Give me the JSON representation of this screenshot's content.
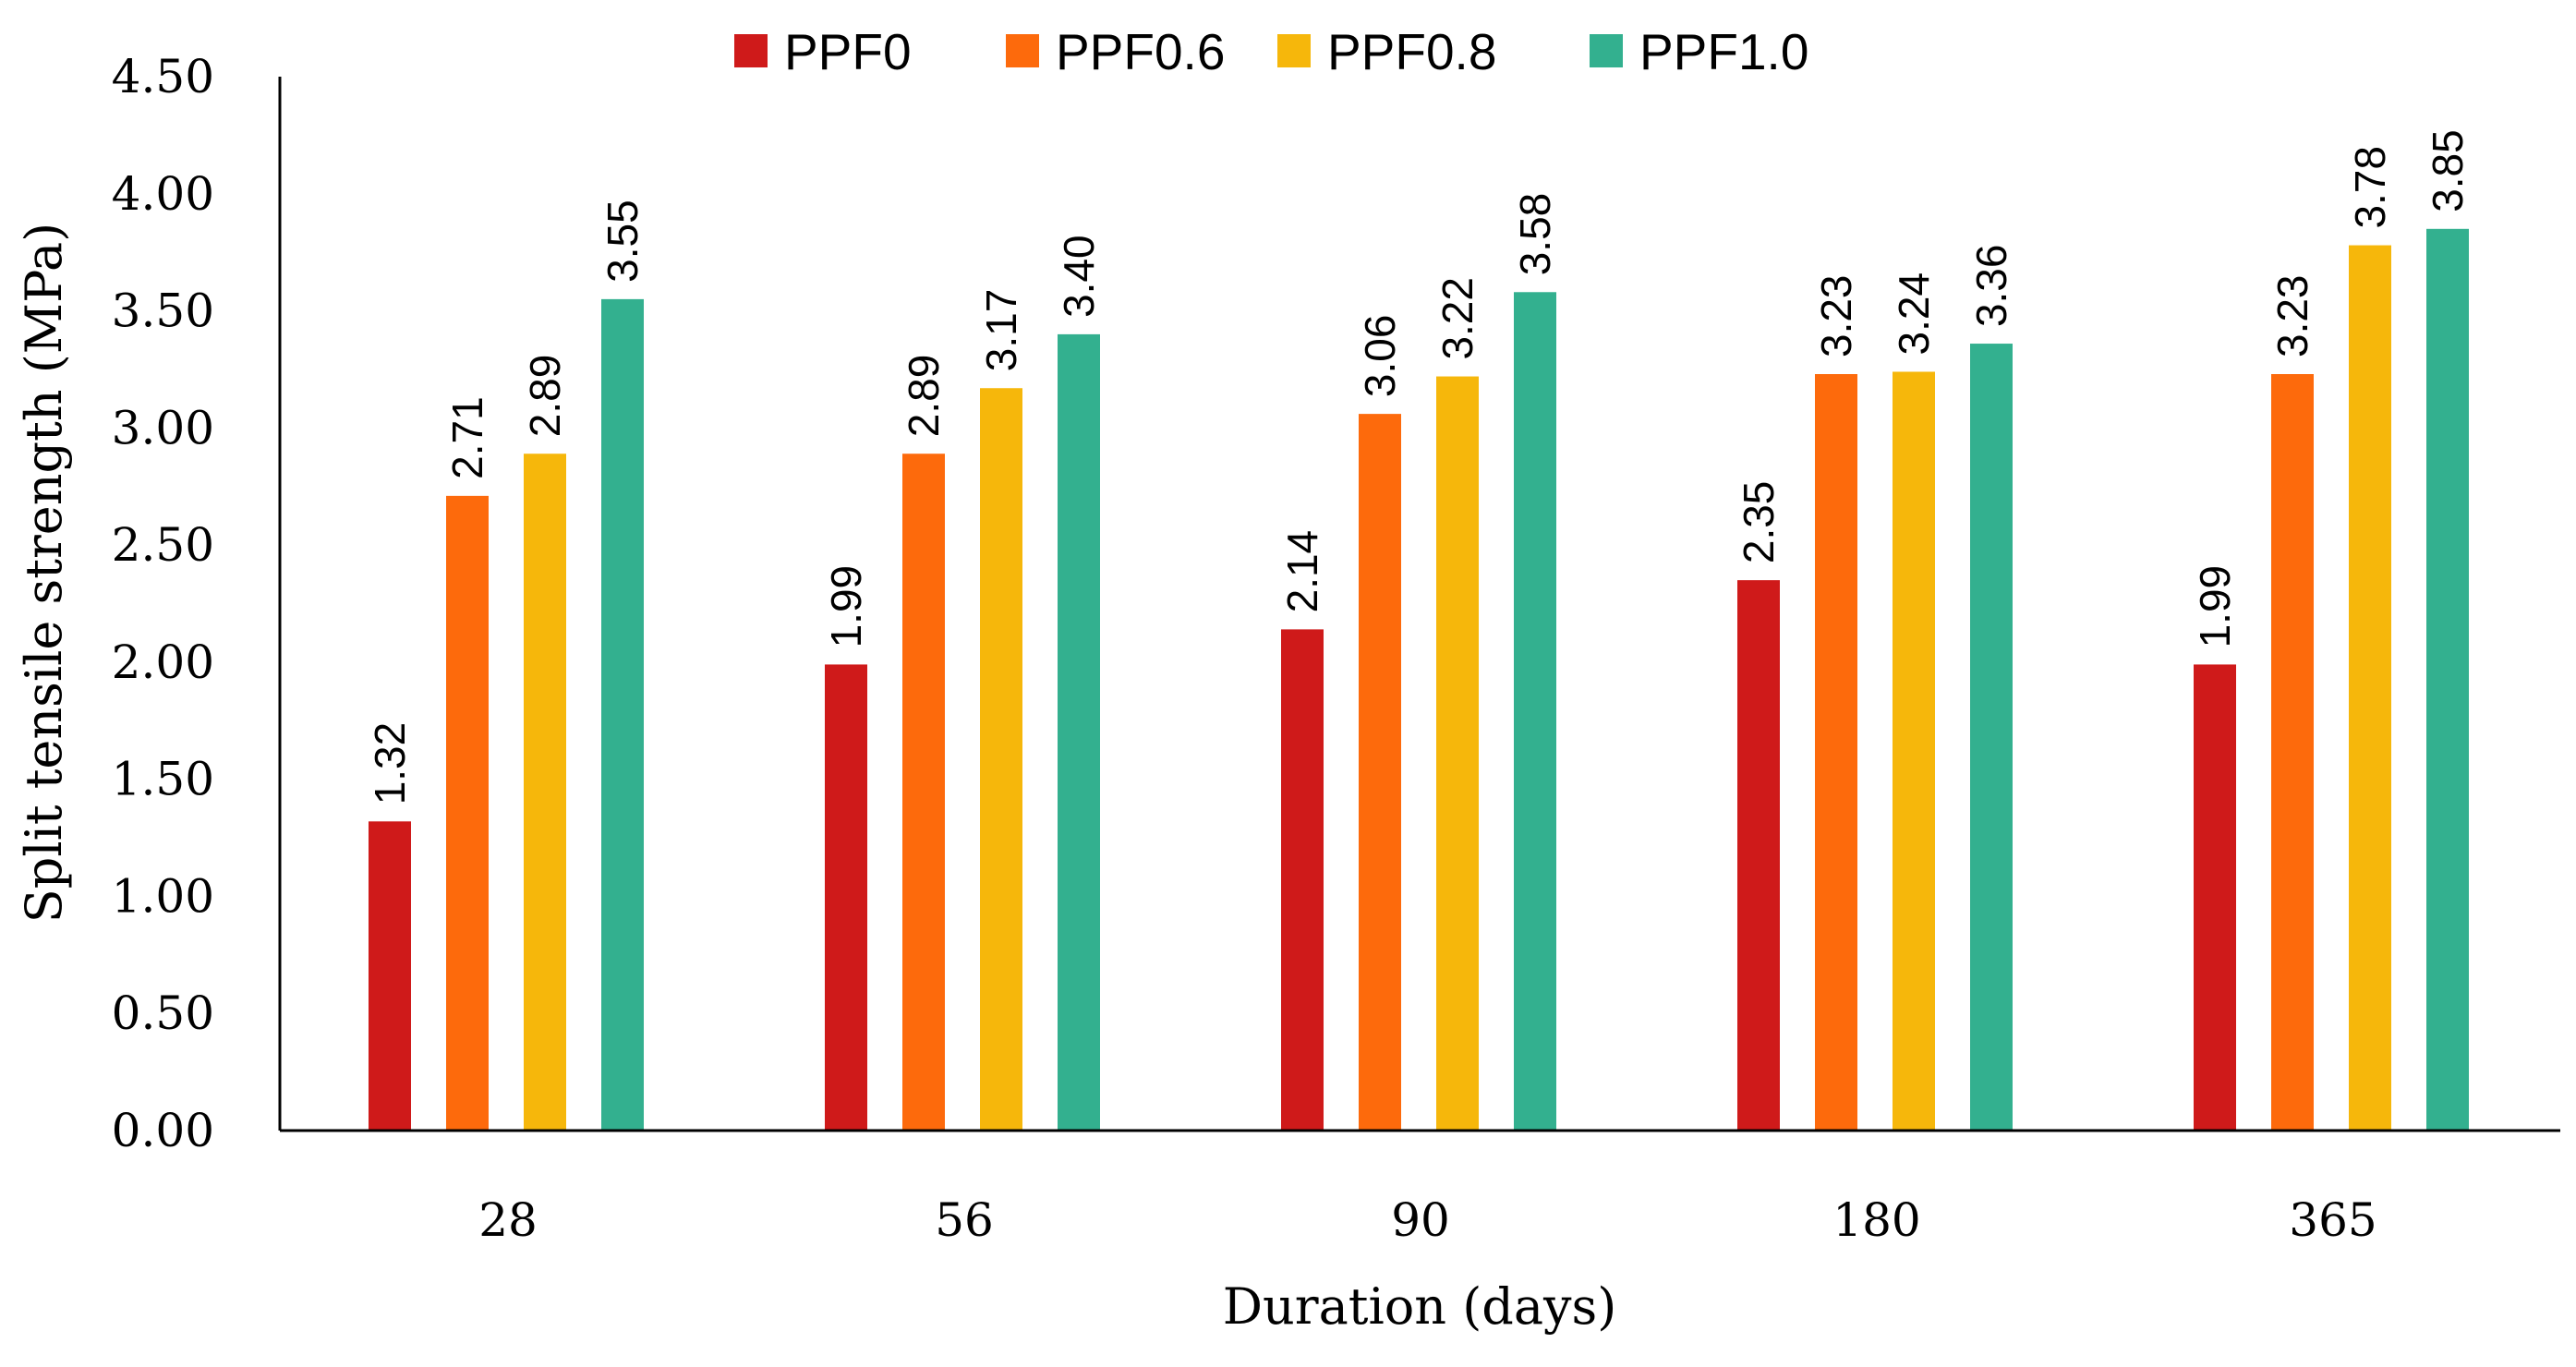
{
  "chart_data": {
    "type": "bar",
    "title": "",
    "xlabel": "Duration (days)",
    "ylabel": "Split tensile strength (MPa)",
    "ylim": [
      0,
      4.5
    ],
    "y_ticks": [
      "0.00",
      "0.50",
      "1.00",
      "1.50",
      "2.00",
      "2.50",
      "3.00",
      "3.50",
      "4.00",
      "4.50"
    ],
    "categories": [
      "28",
      "56",
      "90",
      "180",
      "365"
    ],
    "legend_position": "top-center",
    "grid": false,
    "series": [
      {
        "name": "PPF0",
        "color": "#cf1a1a",
        "values": [
          1.32,
          1.99,
          2.14,
          2.35,
          1.99
        ],
        "labels": [
          "1.32",
          "1.99",
          "2.14",
          "2.35",
          "1.99"
        ]
      },
      {
        "name": "PPF0.6",
        "color": "#fd6a0c",
        "values": [
          2.71,
          2.89,
          3.06,
          3.23,
          3.23
        ],
        "labels": [
          "2.71",
          "2.89",
          "3.06",
          "3.23",
          "3.23"
        ]
      },
      {
        "name": "PPF0.8",
        "color": "#f6b70b",
        "values": [
          2.89,
          3.17,
          3.22,
          3.24,
          3.78
        ],
        "labels": [
          "2.89",
          "3.17",
          "3.22",
          "3.24",
          "3.78"
        ]
      },
      {
        "name": "PPF1.0",
        "color": "#33b08f",
        "values": [
          3.55,
          3.4,
          3.58,
          3.36,
          3.85
        ],
        "labels": [
          "3.55",
          "3.40",
          "3.58",
          "3.36",
          "3.85"
        ]
      }
    ]
  }
}
